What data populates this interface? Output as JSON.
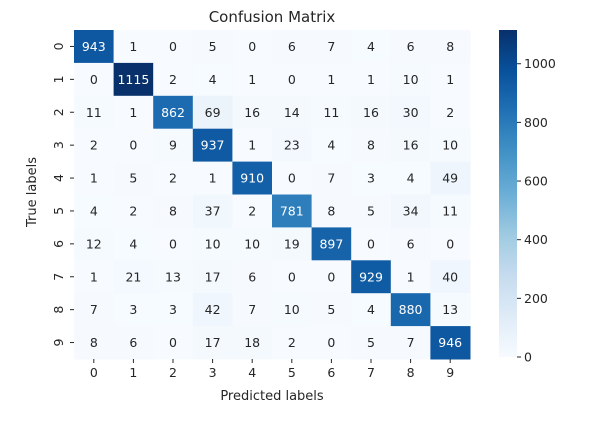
{
  "chart_data": {
    "type": "heatmap",
    "title": "Confusion Matrix",
    "xlabel": "Predicted labels",
    "ylabel": "True labels",
    "x_categories": [
      "0",
      "1",
      "2",
      "3",
      "4",
      "5",
      "6",
      "7",
      "8",
      "9"
    ],
    "y_categories": [
      "0",
      "1",
      "2",
      "3",
      "4",
      "5",
      "6",
      "7",
      "8",
      "9"
    ],
    "values": [
      [
        943,
        1,
        0,
        5,
        0,
        6,
        7,
        4,
        6,
        8
      ],
      [
        0,
        1115,
        2,
        4,
        1,
        0,
        1,
        1,
        10,
        1
      ],
      [
        11,
        1,
        862,
        69,
        16,
        14,
        11,
        16,
        30,
        2
      ],
      [
        2,
        0,
        9,
        937,
        1,
        23,
        4,
        8,
        16,
        10
      ],
      [
        1,
        5,
        2,
        1,
        910,
        0,
        7,
        3,
        4,
        49
      ],
      [
        4,
        2,
        8,
        37,
        2,
        781,
        8,
        5,
        34,
        11
      ],
      [
        12,
        4,
        0,
        10,
        10,
        19,
        897,
        0,
        6,
        0
      ],
      [
        1,
        21,
        13,
        17,
        6,
        0,
        0,
        929,
        1,
        40
      ],
      [
        7,
        3,
        3,
        42,
        7,
        10,
        5,
        4,
        880,
        13
      ],
      [
        8,
        6,
        0,
        17,
        18,
        2,
        0,
        5,
        7,
        946
      ]
    ],
    "colorbar": {
      "range": [
        0,
        1115
      ],
      "ticks": [
        0,
        200,
        400,
        600,
        800,
        1000
      ],
      "colormap": "Blues"
    }
  }
}
